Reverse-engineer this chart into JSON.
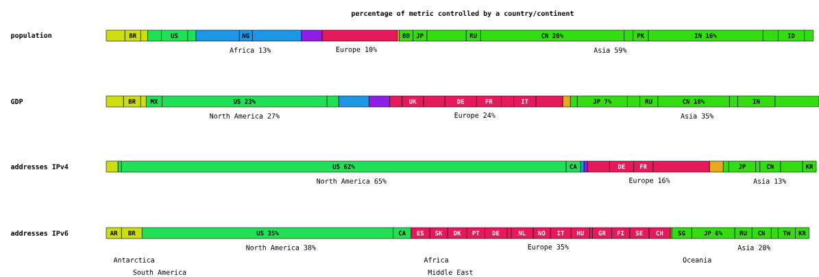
{
  "chart_data": [
    {
      "type": "bar",
      "orientation": "horizontal",
      "stacked": true,
      "title": "percentage of metric controlled by a country/continent",
      "categories": [
        "population"
      ],
      "series": [
        {
          "color": "#ccdd11",
          "values": [
            2.6
          ]
        },
        {
          "color": "#ccdd11",
          "values": [
            2.21
          ],
          "value_labels": [
            "BR"
          ]
        },
        {
          "color": "#ccdd11",
          "values": [
            0.96
          ]
        },
        {
          "color": "#22e055",
          "values": [
            1.92
          ]
        },
        {
          "color": "#22e055",
          "values": [
            3.65
          ],
          "value_labels": [
            "US"
          ]
        },
        {
          "color": "#22e055",
          "values": [
            1.15
          ]
        },
        {
          "color": "#1e96e6",
          "values": [
            6.06
          ]
        },
        {
          "color": "#1e96e6",
          "values": [
            1.83
          ],
          "value_labels": [
            "NG"
          ]
        },
        {
          "color": "#1e96e6",
          "values": [
            6.83
          ]
        },
        {
          "color": "#8c1ee6",
          "values": [
            2.88
          ]
        },
        {
          "color": "#e6195a",
          "values": [
            10.48
          ]
        },
        {
          "color": "#e6aa1e",
          "values": [
            0.29
          ]
        },
        {
          "color": "#33dd11",
          "values": [
            1.92
          ],
          "value_labels": [
            "BD"
          ]
        },
        {
          "color": "#33dd11",
          "values": [
            1.92
          ],
          "value_labels": [
            "JP"
          ]
        },
        {
          "color": "#33dd11",
          "values": [
            5.48
          ]
        },
        {
          "color": "#33dd11",
          "values": [
            2.02
          ],
          "value_labels": [
            "RU"
          ]
        },
        {
          "color": "#33dd11",
          "values": [
            20
          ],
          "value_labels": [
            "CN 20%"
          ]
        },
        {
          "color": "#33dd11",
          "values": [
            1.25
          ]
        },
        {
          "color": "#33dd11",
          "values": [
            2.12
          ],
          "value_labels": [
            "PK"
          ]
        },
        {
          "color": "#33dd11",
          "values": [
            16
          ],
          "value_labels": [
            "IN 16%"
          ]
        },
        {
          "color": "#33dd11",
          "values": [
            2.12
          ]
        },
        {
          "color": "#33dd11",
          "values": [
            3.65
          ],
          "value_labels": [
            "ID"
          ]
        },
        {
          "color": "#33dd11",
          "values": [
            1.25
          ]
        }
      ],
      "annotations": [
        "Africa 13%",
        "Europe 10%",
        "Asia 59%"
      ]
    },
    {
      "type": "bar",
      "orientation": "horizontal",
      "stacked": true,
      "categories": [
        "GDP"
      ],
      "series": [
        {
          "color": "#ccdd11",
          "values": [
            2.4
          ]
        },
        {
          "color": "#ccdd11",
          "values": [
            2.4
          ],
          "value_labels": [
            "BR"
          ]
        },
        {
          "color": "#ccdd11",
          "values": [
            0.77
          ]
        },
        {
          "color": "#22e055",
          "values": [
            2.21
          ],
          "value_labels": [
            "MX"
          ]
        },
        {
          "color": "#22e055",
          "values": [
            23
          ],
          "value_labels": [
            "US 23%"
          ]
        },
        {
          "color": "#22e055",
          "values": [
            1.63
          ]
        },
        {
          "color": "#1e96e6",
          "values": [
            4.23
          ]
        },
        {
          "color": "#8c1ee6",
          "values": [
            2.88
          ]
        },
        {
          "color": "#e6195a",
          "values": [
            1.73
          ]
        },
        {
          "color": "#e6195a",
          "values": [
            2.98
          ],
          "value_labels": [
            "UK"
          ]
        },
        {
          "color": "#e6195a",
          "values": [
            2.98
          ]
        },
        {
          "color": "#e6195a",
          "values": [
            4.42
          ],
          "value_labels": [
            "DE"
          ]
        },
        {
          "color": "#e6195a",
          "values": [
            3.46
          ],
          "value_labels": [
            "FR"
          ]
        },
        {
          "color": "#e6195a",
          "values": [
            1.73
          ]
        },
        {
          "color": "#e6195a",
          "values": [
            3.08
          ],
          "value_labels": [
            "IT"
          ]
        },
        {
          "color": "#e6195a",
          "values": [
            3.75
          ]
        },
        {
          "color": "#e6aa1e",
          "values": [
            1.06
          ]
        },
        {
          "color": "#33dd11",
          "values": [
            0.96
          ]
        },
        {
          "color": "#33dd11",
          "values": [
            7
          ],
          "value_labels": [
            "JP 7%"
          ]
        },
        {
          "color": "#33dd11",
          "values": [
            1.73
          ]
        },
        {
          "color": "#33dd11",
          "values": [
            2.5
          ],
          "value_labels": [
            "RU"
          ]
        },
        {
          "color": "#33dd11",
          "values": [
            10
          ],
          "value_labels": [
            "CN 10%"
          ]
        },
        {
          "color": "#33dd11",
          "values": [
            1.15
          ]
        },
        {
          "color": "#33dd11",
          "values": [
            5.19
          ],
          "value_labels": [
            "IN"
          ]
        },
        {
          "color": "#33dd11",
          "values": [
            6.15
          ]
        }
      ],
      "annotations": [
        "North America 27%",
        "Europe 24%",
        "Asia 35%"
      ]
    },
    {
      "type": "bar",
      "orientation": "horizontal",
      "stacked": true,
      "categories": [
        "addresses IPv4"
      ],
      "series": [
        {
          "color": "#ccdd11",
          "values": [
            1.63
          ]
        },
        {
          "color": "#22e055",
          "values": [
            0.48
          ]
        },
        {
          "color": "#22e055",
          "values": [
            62
          ],
          "value_labels": [
            "US 62%"
          ]
        },
        {
          "color": "#22e055",
          "values": [
            2.02
          ],
          "value_labels": [
            "CA"
          ]
        },
        {
          "color": "#1e96e6",
          "values": [
            0.48
          ]
        },
        {
          "color": "#8c1ee6",
          "values": [
            0.48
          ]
        },
        {
          "color": "#e6195a",
          "values": [
            3.08
          ]
        },
        {
          "color": "#e6195a",
          "values": [
            3.37
          ],
          "value_labels": [
            "DE"
          ]
        },
        {
          "color": "#e6195a",
          "values": [
            2.69
          ],
          "value_labels": [
            "FR"
          ]
        },
        {
          "color": "#e6195a",
          "values": [
            7.88
          ]
        },
        {
          "color": "#e6aa1e",
          "values": [
            1.92
          ]
        },
        {
          "color": "#33dd11",
          "values": [
            0.77
          ]
        },
        {
          "color": "#33dd11",
          "values": [
            3.75
          ],
          "value_labels": [
            "JP"
          ]
        },
        {
          "color": "#33dd11",
          "values": [
            0.58
          ]
        },
        {
          "color": "#33dd11",
          "values": [
            2.88
          ],
          "value_labels": [
            "CN"
          ]
        },
        {
          "color": "#33dd11",
          "values": [
            3.08
          ]
        },
        {
          "color": "#33dd11",
          "values": [
            1.92
          ],
          "value_labels": [
            "KR"
          ]
        }
      ],
      "annotations": [
        "North America 65%",
        "Europe 16%",
        "Asia 13%"
      ]
    },
    {
      "type": "bar",
      "orientation": "horizontal",
      "stacked": true,
      "categories": [
        "addresses IPv6"
      ],
      "series": [
        {
          "color": "#ccdd11",
          "values": [
            2.12
          ],
          "value_labels": [
            "AR"
          ]
        },
        {
          "color": "#ccdd11",
          "values": [
            2.88
          ],
          "value_labels": [
            "BR"
          ]
        },
        {
          "color": "#22e055",
          "values": [
            35
          ],
          "value_labels": [
            "US 35%"
          ]
        },
        {
          "color": "#22e055",
          "values": [
            2.5
          ],
          "value_labels": [
            "CA"
          ]
        },
        {
          "color": "#e6195a",
          "values": [
            2.6
          ],
          "value_labels": [
            "ES"
          ]
        },
        {
          "color": "#e6195a",
          "values": [
            2.5
          ],
          "value_labels": [
            "SK"
          ]
        },
        {
          "color": "#e6195a",
          "values": [
            2.69
          ],
          "value_labels": [
            "DK"
          ]
        },
        {
          "color": "#e6195a",
          "values": [
            2.5
          ],
          "value_labels": [
            "PT"
          ]
        },
        {
          "color": "#e6195a",
          "values": [
            3.08
          ],
          "value_labels": [
            "DE"
          ]
        },
        {
          "color": "#e6195a",
          "values": [
            0.58
          ]
        },
        {
          "color": "#e6195a",
          "values": [
            3.08
          ],
          "value_labels": [
            "NL"
          ]
        },
        {
          "color": "#e6195a",
          "values": [
            2.4
          ],
          "value_labels": [
            "NO"
          ]
        },
        {
          "color": "#e6195a",
          "values": [
            2.88
          ],
          "value_labels": [
            "IT"
          ]
        },
        {
          "color": "#e6195a",
          "values": [
            2.6
          ],
          "value_labels": [
            "HU"
          ]
        },
        {
          "color": "#e6195a",
          "values": [
            0.38
          ]
        },
        {
          "color": "#e6195a",
          "values": [
            2.69
          ],
          "value_labels": [
            "GR"
          ]
        },
        {
          "color": "#e6195a",
          "values": [
            2.5
          ],
          "value_labels": [
            "FI"
          ]
        },
        {
          "color": "#e6195a",
          "values": [
            2.69
          ],
          "value_labels": [
            "SE"
          ]
        },
        {
          "color": "#e6195a",
          "values": [
            2.98
          ],
          "value_labels": [
            "CH"
          ]
        },
        {
          "color": "#e6aa1e",
          "values": [
            0.19
          ]
        },
        {
          "color": "#33dd11",
          "values": [
            2.79
          ],
          "value_labels": [
            "SG"
          ]
        },
        {
          "color": "#33dd11",
          "values": [
            6
          ],
          "value_labels": [
            "JP 6%"
          ]
        },
        {
          "color": "#33dd11",
          "values": [
            2.4
          ],
          "value_labels": [
            "RU"
          ]
        },
        {
          "color": "#33dd11",
          "values": [
            2.69
          ],
          "value_labels": [
            "CN"
          ]
        },
        {
          "color": "#33dd11",
          "values": [
            0.96
          ]
        },
        {
          "color": "#33dd11",
          "values": [
            2.4
          ],
          "value_labels": [
            "TW"
          ]
        },
        {
          "color": "#33dd11",
          "values": [
            1.92
          ],
          "value_labels": [
            "KR"
          ]
        }
      ],
      "annotations": [
        "North America 38%",
        "Europe 35%",
        "Asia 20%",
        "Antarctica",
        "Africa",
        "Oceania",
        "South America",
        "Middle East"
      ]
    }
  ]
}
